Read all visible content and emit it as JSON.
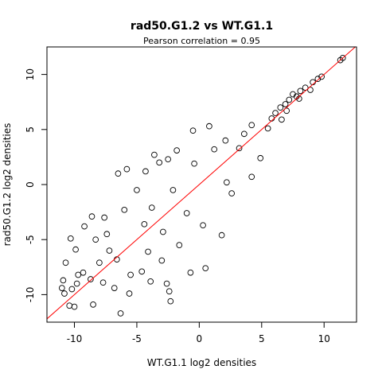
{
  "chart_data": {
    "type": "scatter",
    "title": "rad50.G1.2 vs WT.G1.1",
    "subtitle": "Pearson correlation =  0.95",
    "xlabel": "WT.G1.1 log2 densities",
    "ylabel": "rad50.G1.2 log2 densities",
    "xlim": [
      -12.2,
      12.6
    ],
    "ylim": [
      -12.5,
      12.5
    ],
    "xticks": [
      -10,
      -5,
      0,
      5,
      10
    ],
    "yticks": [
      -10,
      -5,
      0,
      5,
      10
    ],
    "grid": false,
    "legend": "none",
    "marker": "open-circle",
    "point_color": "#000000",
    "fit_line": {
      "slope": 1.0,
      "intercept": 0.0,
      "color": "#ff0000"
    },
    "series": [
      {
        "points": [
          [
            11.5,
            11.5
          ],
          [
            11.3,
            11.3
          ],
          [
            9.8,
            9.8
          ],
          [
            9.5,
            9.6
          ],
          [
            9.1,
            9.3
          ],
          [
            8.5,
            8.8
          ],
          [
            8.1,
            8.5
          ],
          [
            7.8,
            8.0
          ],
          [
            7.5,
            8.2
          ],
          [
            7.2,
            7.7
          ],
          [
            6.9,
            7.3
          ],
          [
            6.5,
            7.0
          ],
          [
            6.1,
            6.5
          ],
          [
            5.8,
            6.0
          ],
          [
            7.0,
            6.7
          ],
          [
            8.0,
            7.8
          ],
          [
            8.9,
            8.6
          ],
          [
            6.6,
            5.9
          ],
          [
            5.5,
            5.1
          ],
          [
            4.2,
            5.4
          ],
          [
            0.8,
            5.3
          ],
          [
            -0.5,
            4.9
          ],
          [
            -3.6,
            2.7
          ],
          [
            -6.5,
            1.0
          ],
          [
            -5.8,
            1.4
          ],
          [
            -3.2,
            2.0
          ],
          [
            -2.5,
            2.3
          ],
          [
            -4.3,
            1.2
          ],
          [
            -1.8,
            3.1
          ],
          [
            -7.6,
            -3.0
          ],
          [
            -9.2,
            -3.8
          ],
          [
            -10.3,
            -4.9
          ],
          [
            -8.6,
            -2.9
          ],
          [
            -9.9,
            -5.9
          ],
          [
            -10.7,
            -7.1
          ],
          [
            -11.0,
            -9.4
          ],
          [
            -10.8,
            -9.9
          ],
          [
            -10.4,
            -11.0
          ],
          [
            -10.0,
            -11.1
          ],
          [
            -10.9,
            -8.7
          ],
          [
            -9.7,
            -8.2
          ],
          [
            -8.5,
            -10.9
          ],
          [
            -6.3,
            -11.7
          ],
          [
            -5.6,
            -9.9
          ],
          [
            -3.9,
            -8.8
          ],
          [
            -2.6,
            -9.0
          ],
          [
            -2.4,
            -9.7
          ],
          [
            -2.3,
            -10.6
          ],
          [
            -0.7,
            -8.0
          ],
          [
            0.5,
            -7.6
          ],
          [
            1.8,
            -4.6
          ],
          [
            0.3,
            -3.7
          ],
          [
            -1.0,
            -2.6
          ],
          [
            2.6,
            -0.8
          ],
          [
            2.2,
            0.2
          ],
          [
            4.2,
            0.7
          ],
          [
            4.9,
            2.4
          ],
          [
            3.2,
            3.3
          ],
          [
            -7.2,
            -6.0
          ],
          [
            -6.6,
            -6.8
          ],
          [
            -8.0,
            -7.1
          ],
          [
            -8.7,
            -8.6
          ],
          [
            -9.3,
            -8.0
          ],
          [
            -7.7,
            -8.9
          ],
          [
            -6.8,
            -9.4
          ],
          [
            -9.8,
            -9.0
          ],
          [
            -10.2,
            -9.5
          ],
          [
            -4.6,
            -7.9
          ],
          [
            -4.1,
            -6.1
          ],
          [
            -5.5,
            -8.2
          ],
          [
            -3.0,
            -6.9
          ],
          [
            -1.6,
            -5.5
          ],
          [
            -3.8,
            -2.1
          ],
          [
            -2.1,
            -0.5
          ],
          [
            -0.4,
            1.9
          ],
          [
            1.2,
            3.2
          ],
          [
            2.1,
            4.0
          ],
          [
            3.6,
            4.6
          ],
          [
            -6.0,
            -2.3
          ],
          [
            -7.4,
            -4.5
          ],
          [
            -8.3,
            -5.0
          ],
          [
            -5.0,
            -0.5
          ],
          [
            -4.4,
            -3.6
          ],
          [
            -2.9,
            -4.3
          ]
        ]
      }
    ]
  }
}
